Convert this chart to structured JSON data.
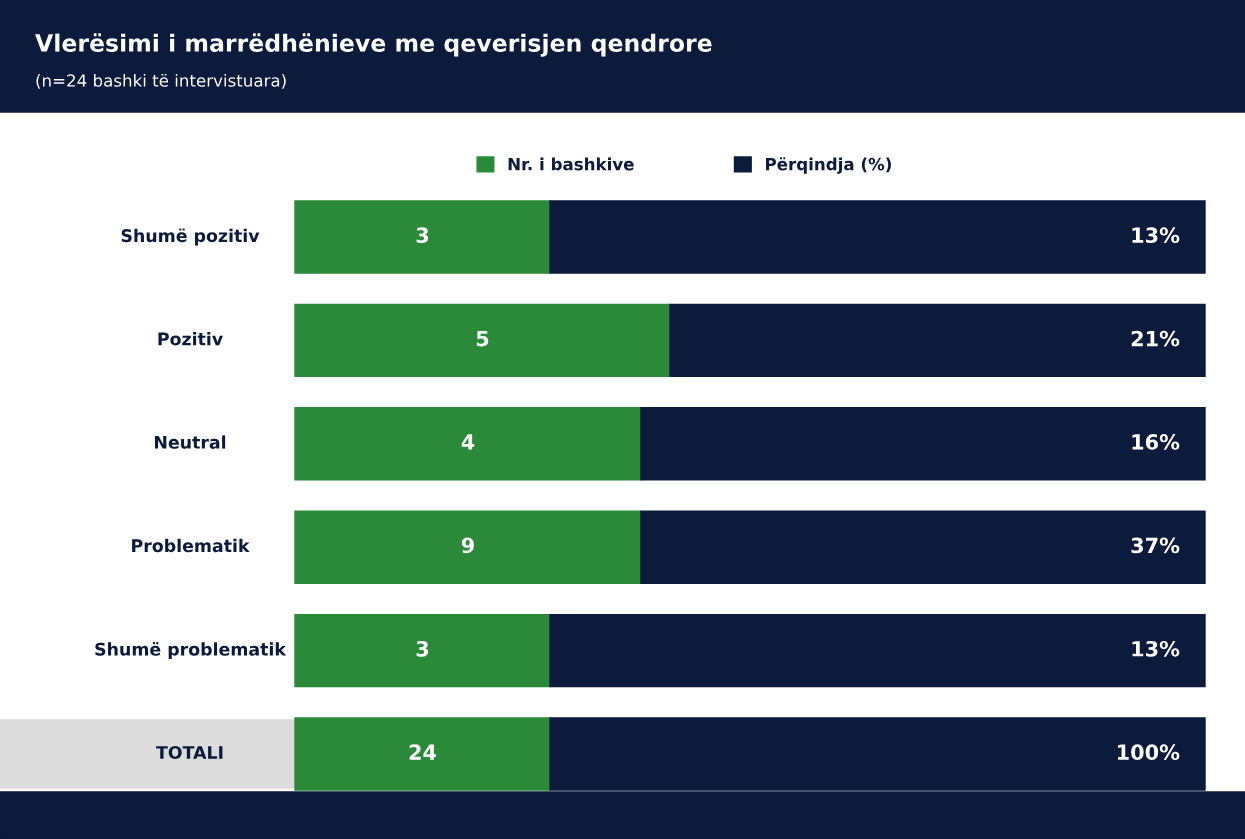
{
  "chart_data": {
    "type": "other",
    "title": "Vlerësimi i marrëdhënieve me qeverisjen qendrore",
    "subtitle": "(n=24 bashki të intervistuara)",
    "categories": [
      "Shumë pozitiv",
      "Pozitiv",
      "Neutral",
      "Problematik",
      "Shumë problematik",
      "TOTALI"
    ],
    "series": [
      {
        "name": "Nr. i bashkive",
        "color": "#2a8a3a",
        "values": [
          3,
          5,
          4,
          9,
          3,
          24
        ]
      },
      {
        "name": "Përqindja (%)",
        "color": "#0c1a3c",
        "values": [
          13,
          21,
          16,
          37,
          13,
          100
        ],
        "value_labels": [
          "13%",
          "21%",
          "16%",
          "37%",
          "13%",
          "100%"
        ]
      }
    ],
    "data_labels": true,
    "legend": "top"
  }
}
